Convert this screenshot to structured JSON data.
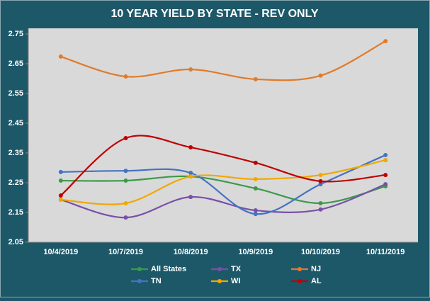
{
  "chart_data": {
    "type": "line",
    "title": "10 YEAR YIELD BY STATE - REV ONLY",
    "categories": [
      "10/4/2019",
      "10/7/2019",
      "10/8/2019",
      "10/9/2019",
      "10/10/2019",
      "10/11/2019"
    ],
    "series": [
      {
        "name": "All States",
        "color": "#3a9a4a",
        "values": [
          2.257,
          2.257,
          2.271,
          2.231,
          2.181,
          2.238
        ]
      },
      {
        "name": "TX",
        "color": "#7a4fa8",
        "values": [
          2.193,
          2.133,
          2.202,
          2.157,
          2.16,
          2.245
        ]
      },
      {
        "name": "NJ",
        "color": "#e07b2a",
        "values": [
          2.674,
          2.607,
          2.631,
          2.598,
          2.61,
          2.726
        ]
      },
      {
        "name": "TN",
        "color": "#4472c4",
        "values": [
          2.286,
          2.29,
          2.283,
          2.145,
          2.245,
          2.343
        ]
      },
      {
        "name": "WI",
        "color": "#f0a800",
        "values": [
          2.193,
          2.181,
          2.271,
          2.262,
          2.276,
          2.326
        ]
      },
      {
        "name": "AL",
        "color": "#c00000",
        "values": [
          2.207,
          2.4,
          2.369,
          2.317,
          2.255,
          2.276
        ]
      }
    ],
    "ylim": [
      2.05,
      2.75
    ],
    "yticks": [
      2.05,
      2.15,
      2.25,
      2.35,
      2.45,
      2.55,
      2.65,
      2.75
    ],
    "smooth": true,
    "grid": false
  }
}
